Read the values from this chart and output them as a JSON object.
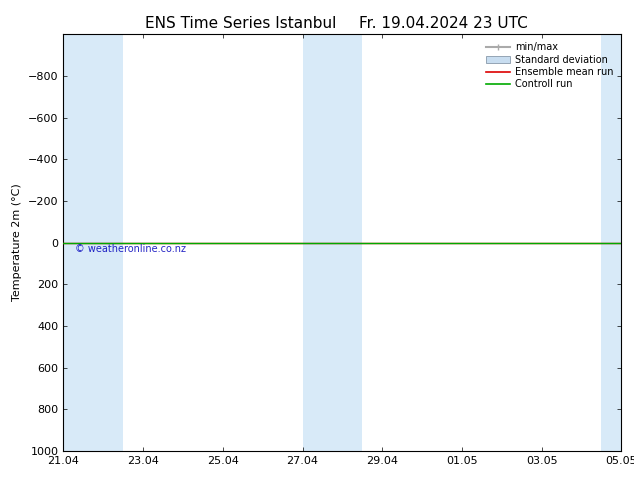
{
  "title": "ENS Time Series Istanbul",
  "title2": "Fr. 19.04.2024 23 UTC",
  "ylabel": "Temperature 2m (°C)",
  "ylim_bottom": 1000,
  "ylim_top": -1000,
  "yticks": [
    -800,
    -600,
    -400,
    -200,
    0,
    200,
    400,
    600,
    800,
    1000
  ],
  "background_color": "#ffffff",
  "plot_bg_color": "#ffffff",
  "shaded_bands": [
    {
      "x_start": 0.0,
      "x_end": 0.75
    },
    {
      "x_start": 0.75,
      "x_end": 1.5
    },
    {
      "x_start": 6.0,
      "x_end": 6.75
    },
    {
      "x_start": 6.75,
      "x_end": 7.5
    },
    {
      "x_start": 13.5,
      "x_end": 14.0
    }
  ],
  "shaded_color": "#d8eaf8",
  "xtick_labels": [
    "21.04",
    "23.04",
    "25.04",
    "27.04",
    "29.04",
    "01.05",
    "03.05",
    "05.05"
  ],
  "xtick_positions": [
    0,
    2,
    4,
    6,
    8,
    10,
    12,
    14
  ],
  "x_total": 14,
  "green_line_y": 0,
  "red_line_y": 0,
  "watermark": "© weatheronline.co.nz",
  "legend_labels": [
    "min/max",
    "Standard deviation",
    "Ensemble mean run",
    "Controll run"
  ],
  "title_fontsize": 11,
  "axis_fontsize": 8,
  "tick_fontsize": 8
}
